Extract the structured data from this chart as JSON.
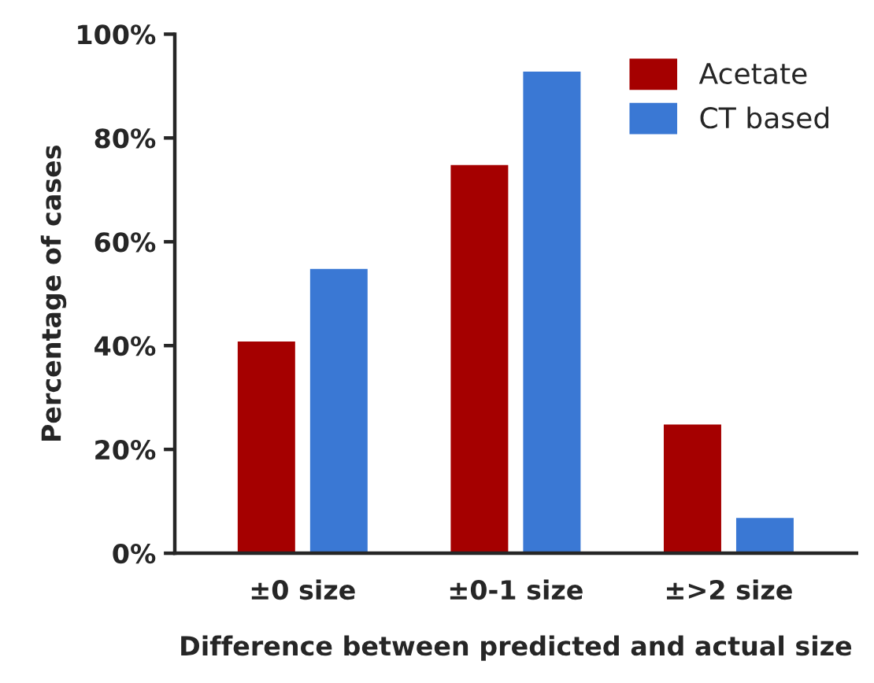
{
  "chart_data": {
    "type": "bar",
    "xlabel": "Difference between predicted and actual size",
    "ylabel": "Percentage of cases",
    "categories": [
      "±0 size",
      "±0-1 size",
      "±>2 size"
    ],
    "series": [
      {
        "name": "Acetate",
        "color": "#a50000",
        "values": [
          41,
          75,
          25
        ]
      },
      {
        "name": "CT based",
        "color": "#3a78d4",
        "values": [
          55,
          93,
          7
        ]
      }
    ],
    "ylim": [
      0,
      100
    ],
    "yticks": [
      {
        "value": 0,
        "label": "0%"
      },
      {
        "value": 20,
        "label": "20%"
      },
      {
        "value": 40,
        "label": "40%"
      },
      {
        "value": 60,
        "label": "60%"
      },
      {
        "value": 80,
        "label": "80%"
      },
      {
        "value": 100,
        "label": "100%"
      }
    ],
    "legend": "top right",
    "grid": false
  }
}
